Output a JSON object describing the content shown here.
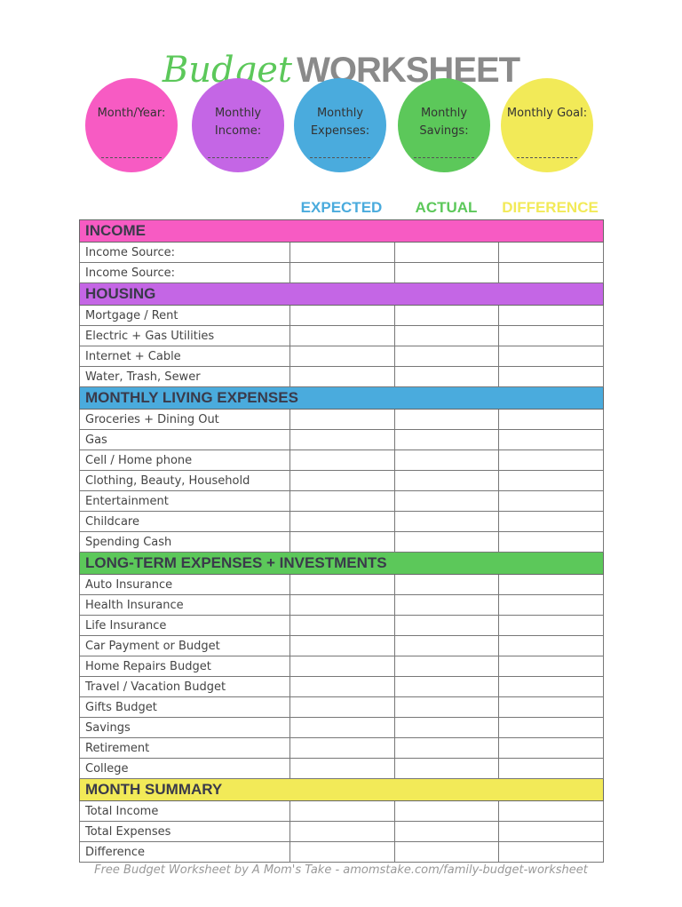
{
  "title": {
    "script": "Budget",
    "bold": "WORKSHEET"
  },
  "circles": [
    {
      "label": "Month/Year:",
      "color": "#f75bc3"
    },
    {
      "label": "Monthly Income:",
      "color": "#c466e5"
    },
    {
      "label": "Monthly Expenses:",
      "color": "#4aabdd"
    },
    {
      "label": "Monthly Savings:",
      "color": "#5cc85a"
    },
    {
      "label": "Monthly Goal:",
      "color": "#f2ea58"
    }
  ],
  "columns": [
    {
      "label": "EXPECTED",
      "color": "#4aabdd"
    },
    {
      "label": "ACTUAL",
      "color": "#5cc85a"
    },
    {
      "label": "DIFFERENCE",
      "color": "#f2ea58"
    }
  ],
  "sections": [
    {
      "title": "INCOME",
      "color": "#f75bc3",
      "rows": [
        "Income Source:",
        "Income Source:"
      ]
    },
    {
      "title": "HOUSING",
      "color": "#c466e5",
      "rows": [
        "Mortgage / Rent",
        "Electric + Gas Utilities",
        "Internet + Cable",
        "Water, Trash, Sewer"
      ]
    },
    {
      "title": "MONTHLY LIVING EXPENSES",
      "color": "#4aabdd",
      "rows": [
        "Groceries + Dining Out",
        "Gas",
        "Cell / Home phone",
        "Clothing, Beauty, Household",
        "Entertainment",
        "Childcare",
        "Spending Cash"
      ]
    },
    {
      "title": "LONG-TERM EXPENSES + INVESTMENTS",
      "color": "#5cc85a",
      "rows": [
        "Auto Insurance",
        "Health Insurance",
        "Life Insurance",
        "Car Payment or Budget",
        "Home Repairs Budget",
        "Travel / Vacation Budget",
        "Gifts Budget",
        "Savings",
        "Retirement",
        "College"
      ]
    },
    {
      "title": "MONTH SUMMARY",
      "color": "#f2ea58",
      "rows": [
        "Total Income",
        "Total Expenses",
        "Difference"
      ]
    }
  ],
  "footer": "Free Budget Worksheet by A Mom's Take - amomstake.com/family-budget-worksheet"
}
